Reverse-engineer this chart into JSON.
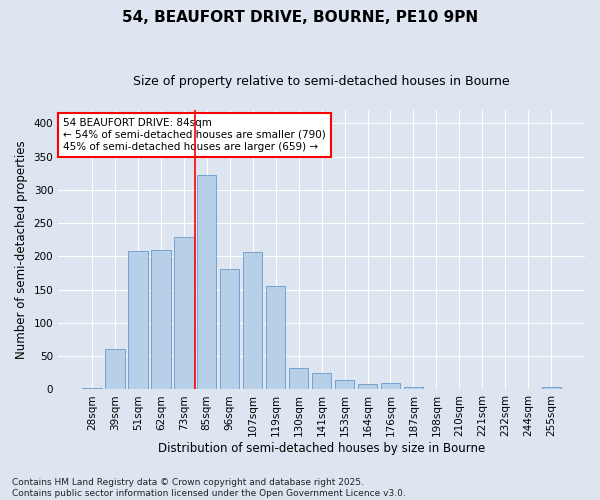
{
  "title1": "54, BEAUFORT DRIVE, BOURNE, PE10 9PN",
  "title2": "Size of property relative to semi-detached houses in Bourne",
  "xlabel": "Distribution of semi-detached houses by size in Bourne",
  "ylabel": "Number of semi-detached properties",
  "bar_labels": [
    "28sqm",
    "39sqm",
    "51sqm",
    "62sqm",
    "73sqm",
    "85sqm",
    "96sqm",
    "107sqm",
    "119sqm",
    "130sqm",
    "141sqm",
    "153sqm",
    "164sqm",
    "176sqm",
    "187sqm",
    "198sqm",
    "210sqm",
    "221sqm",
    "232sqm",
    "244sqm",
    "255sqm"
  ],
  "bar_values": [
    2,
    61,
    208,
    209,
    229,
    323,
    181,
    206,
    156,
    33,
    25,
    14,
    8,
    9,
    4,
    1,
    1,
    0,
    1,
    0,
    3
  ],
  "bar_color": "#b8cfe8",
  "bar_edge_color": "#6699cc",
  "vline_index": 5,
  "vline_color": "red",
  "annotation_text": "54 BEAUFORT DRIVE: 84sqm\n← 54% of semi-detached houses are smaller (790)\n45% of semi-detached houses are larger (659) →",
  "annotation_box_color": "white",
  "annotation_box_edge_color": "red",
  "ylim": [
    0,
    420
  ],
  "yticks": [
    0,
    50,
    100,
    150,
    200,
    250,
    300,
    350,
    400
  ],
  "background_color": "#dde5f0",
  "plot_background_color": "#dde5f0",
  "footer_text": "Contains HM Land Registry data © Crown copyright and database right 2025.\nContains public sector information licensed under the Open Government Licence v3.0.",
  "title1_fontsize": 11,
  "title2_fontsize": 9,
  "xlabel_fontsize": 8.5,
  "ylabel_fontsize": 8.5,
  "annotation_fontsize": 7.5,
  "footer_fontsize": 6.5,
  "tick_fontsize": 7.5
}
